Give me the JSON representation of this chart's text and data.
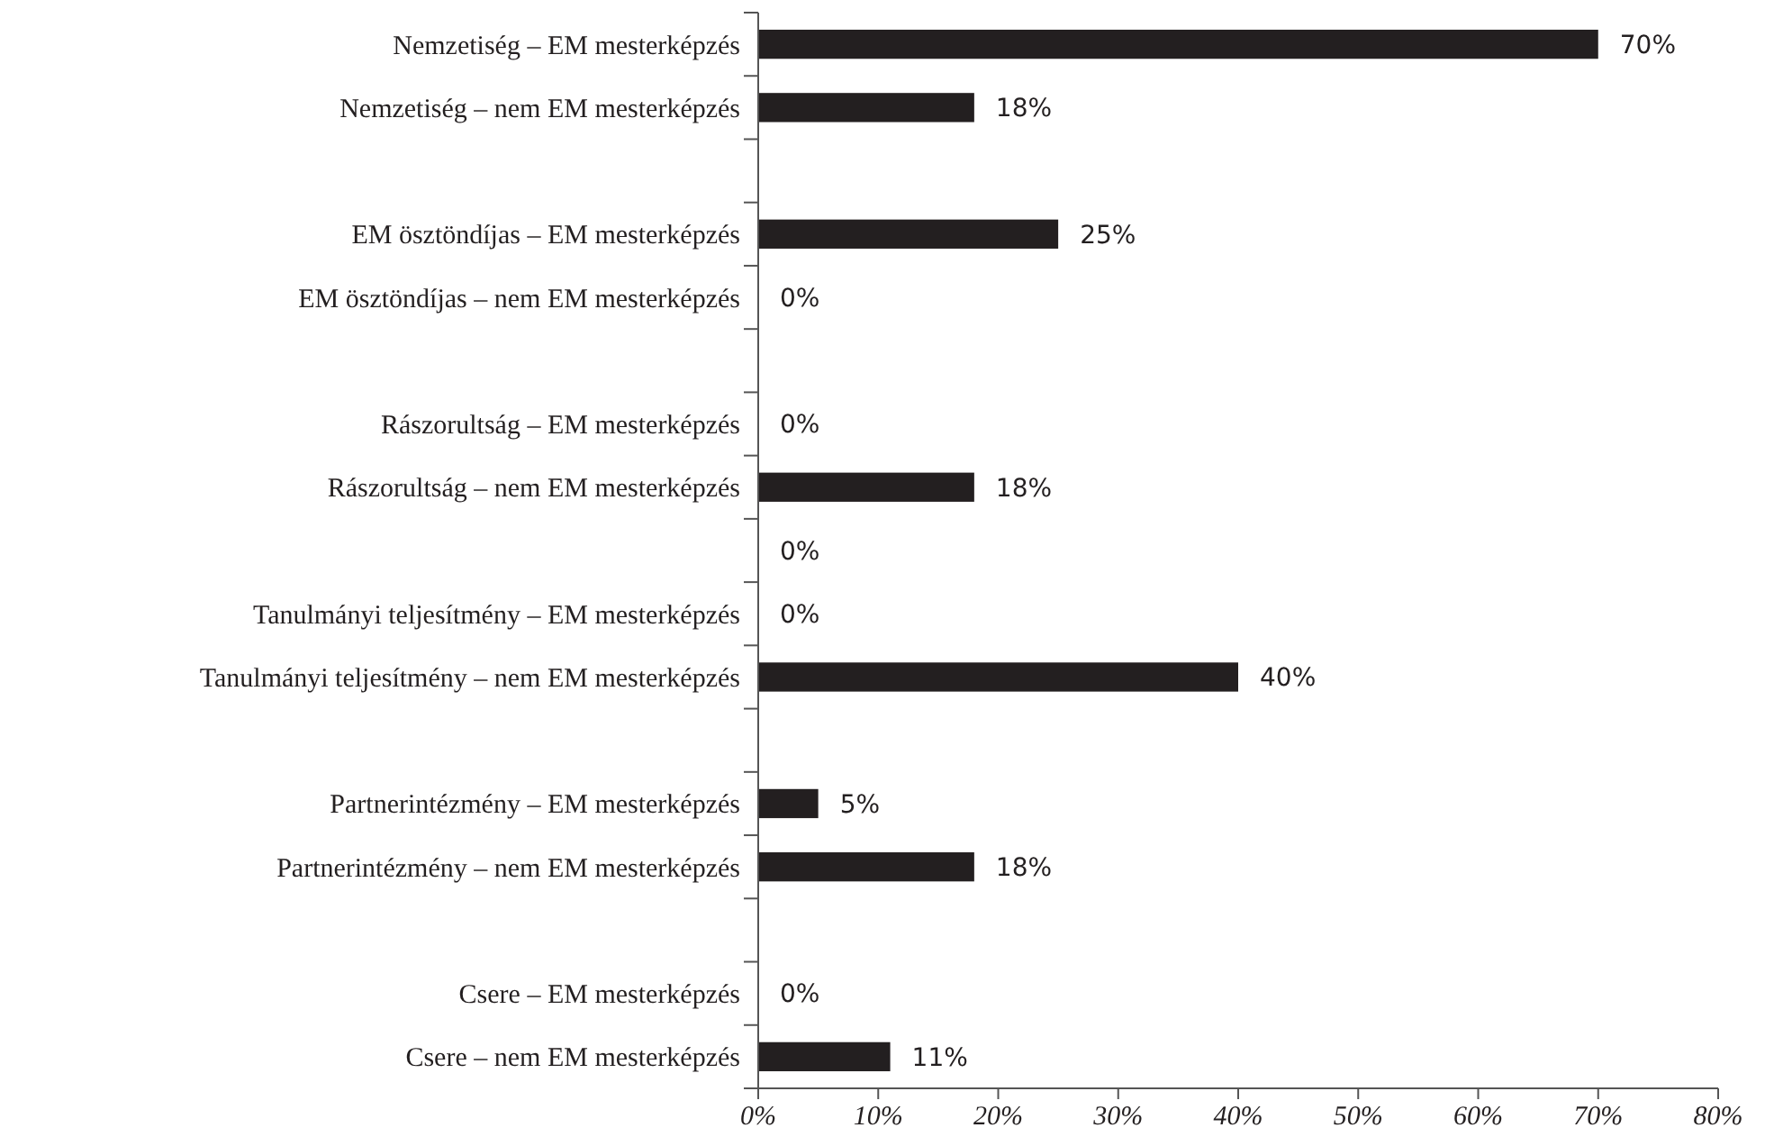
{
  "chart_data": {
    "type": "bar",
    "orientation": "horizontal",
    "categories": [
      "Nemzetiség – EM mesterképzés",
      "Nemzetiség – nem EM mesterképzés",
      null,
      "EM ösztöndíjas – EM mesterképzés",
      "EM ösztöndíjas – nem EM mesterképzés",
      null,
      "Rászorultság – EM mesterképzés",
      "Rászorultság – nem EM mesterképzés",
      null,
      "Tanulmányi teljesítmény – EM mesterképzés",
      "Tanulmányi teljesítmény – nem EM mesterképzés",
      null,
      "Partnerintézmény – EM mesterképzés",
      "Partnerintézmény – nem EM mesterképzés",
      null,
      "Csere – EM mesterképzés",
      "Csere – nem EM mesterképzés"
    ],
    "values": [
      70,
      18,
      null,
      25,
      0,
      null,
      0,
      18,
      0,
      0,
      40,
      null,
      5,
      18,
      null,
      0,
      11
    ],
    "value_labels": [
      "70%",
      "18%",
      null,
      "25%",
      "0%",
      null,
      "0%",
      "18%",
      "0%",
      "0%",
      "40%",
      null,
      "5%",
      "18%",
      null,
      "0%",
      "11%"
    ],
    "color": "#231f20",
    "xlim": [
      0,
      80
    ],
    "xticks": [
      {
        "value": 0,
        "label": "0%"
      },
      {
        "value": 10,
        "label": "10%"
      },
      {
        "value": 20,
        "label": "20%"
      },
      {
        "value": 30,
        "label": "30%"
      },
      {
        "value": 40,
        "label": "40%"
      },
      {
        "value": 50,
        "label": "50%"
      },
      {
        "value": 60,
        "label": "60%"
      },
      {
        "value": 70,
        "label": "70%"
      },
      {
        "value": 80,
        "label": "80%"
      }
    ],
    "grid": false
  }
}
